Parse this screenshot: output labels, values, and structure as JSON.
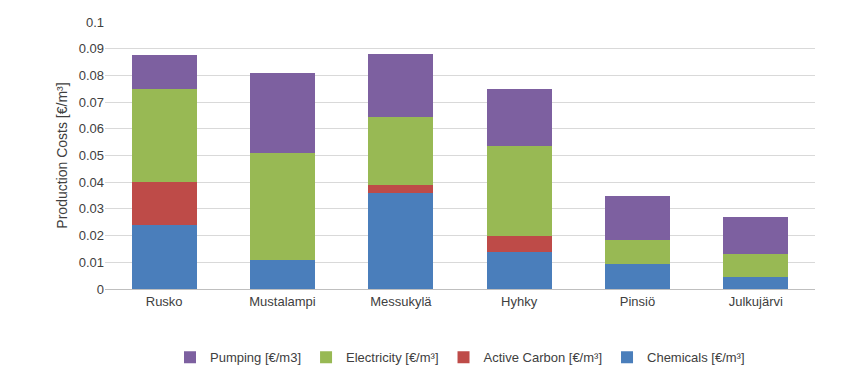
{
  "chart_data": {
    "type": "bar",
    "stacked": true,
    "y_label": "Production Costs [€/m³]",
    "categories": [
      "Rusko",
      "Mustalampi",
      "Messukylä",
      "Hyhky",
      "Pinsiö",
      "Julkujärvi"
    ],
    "series": [
      {
        "name": "Chemicals [€/m³]",
        "color": "#4a7ebb",
        "values": [
          0.024,
          0.011,
          0.036,
          0.014,
          0.0095,
          0.0045
        ]
      },
      {
        "name": "Active Carbon [€/m³]",
        "color": "#be4b48",
        "values": [
          0.016,
          0,
          0.003,
          0.006,
          0,
          0
        ]
      },
      {
        "name": "Electricity [€/m³]",
        "color": "#98b954",
        "values": [
          0.035,
          0.04,
          0.0255,
          0.0335,
          0.009,
          0.0085
        ]
      },
      {
        "name": "Pumping [€/m3]",
        "color": "#7d60a0",
        "values": [
          0.0125,
          0.03,
          0.0235,
          0.0215,
          0.0165,
          0.014
        ]
      }
    ],
    "ylim": [
      0,
      0.1
    ],
    "yticks": [
      0,
      0.01,
      0.02,
      0.03,
      0.04,
      0.05,
      0.06,
      0.07,
      0.08,
      0.09,
      0.1
    ],
    "grid": true,
    "legend": "bottom"
  }
}
